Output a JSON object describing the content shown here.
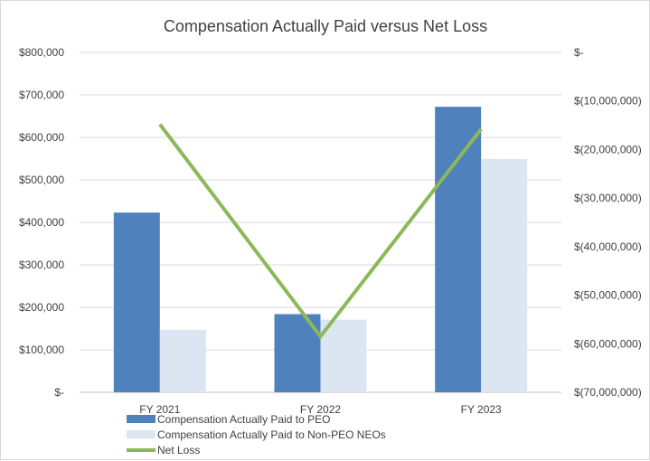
{
  "chart_data": {
    "type": "bar",
    "title": "Compensation Actually Paid versus Net Loss",
    "categories": [
      "FY 2021",
      "FY 2022",
      "FY 2023"
    ],
    "series": [
      {
        "name": "Compensation Actually Paid to PEO",
        "type": "bar",
        "axis": "left",
        "color": "#4f81bd",
        "values": [
          423000,
          184000,
          672000
        ]
      },
      {
        "name": "Compensation Actually Paid to Non-PEO NEOs",
        "type": "bar",
        "axis": "left",
        "color": "#dce6f2",
        "values": [
          147000,
          171000,
          549000
        ]
      },
      {
        "name": "Net Loss",
        "type": "line",
        "axis": "right",
        "color": "#8db859",
        "values": [
          -14800000,
          -58500000,
          -15800000
        ]
      }
    ],
    "y_left": {
      "ylim": [
        0,
        800000
      ],
      "ticks": [
        0,
        100000,
        200000,
        300000,
        400000,
        500000,
        600000,
        700000,
        800000
      ],
      "tick_labels": [
        "$-",
        "$100,000",
        "$200,000",
        "$300,000",
        "$400,000",
        "$500,000",
        "$600,000",
        "$700,000",
        "$800,000"
      ]
    },
    "y_right": {
      "ylim": [
        -70000000,
        0
      ],
      "ticks": [
        0,
        -10000000,
        -20000000,
        -30000000,
        -40000000,
        -50000000,
        -60000000,
        -70000000
      ],
      "tick_labels": [
        "$-",
        "$(10,000,000)",
        "$(20,000,000)",
        "$(30,000,000)",
        "$(40,000,000)",
        "$(50,000,000)",
        "$(60,000,000)",
        "$(70,000,000)"
      ]
    },
    "grid": true,
    "legend_position": "bottom-left"
  }
}
